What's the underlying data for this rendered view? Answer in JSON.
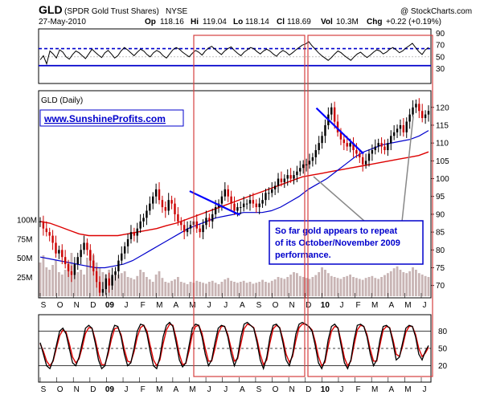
{
  "header": {
    "symbol": "GLD",
    "name": "(SPDR Gold Trust Shares)",
    "exchange": "NYSE",
    "brand": "@ StockCharts.com",
    "date": "27-May-2010",
    "op_label": "Op",
    "op": "118.16",
    "hi_label": "Hi",
    "hi": "119.04",
    "lo_label": "Lo",
    "lo": "118.14",
    "cl_label": "Cl",
    "cl": "118.69",
    "vol_label": "Vol",
    "vol": "10.3M",
    "chg_label": "Chg",
    "chg": "+0.22 (+0.19%)"
  },
  "main_panel": {
    "label": "GLD (Daily)",
    "website": "www.SunshineProfits.com"
  },
  "annotation": {
    "lines": [
      "So far gold appears to repeat",
      "of its October/November 2009",
      "performance."
    ]
  },
  "colors": {
    "price_up": "#000000",
    "price_down": "#cc0000",
    "ma_short": "#0000cc",
    "ma_long": "#dd0000",
    "volume": "#c8b4b4",
    "highlight_box": "#d64040",
    "trendline": "#0000ff",
    "annotation_text": "#0000cc",
    "rsi_band": "#0000cc",
    "osc_line": "#000000",
    "osc_signal": "#dd0000"
  },
  "chart_data": [
    {
      "type": "line",
      "panel": "RSI (top)",
      "y_ticks": [
        "90",
        "70",
        "50",
        "30"
      ],
      "ylim": [
        10,
        95
      ],
      "overbought": 64,
      "oversold": 35,
      "values": [
        45,
        52,
        38,
        60,
        55,
        48,
        62,
        58,
        50,
        46,
        54,
        60,
        57,
        52,
        47,
        55,
        63,
        58,
        53,
        49,
        57,
        61,
        55,
        48,
        52,
        60,
        66,
        62,
        57,
        52,
        58,
        63,
        60,
        54,
        50,
        57,
        61,
        58,
        52,
        48,
        55,
        62,
        66,
        63,
        58,
        54,
        50,
        56,
        61,
        58,
        53,
        60,
        65,
        68,
        63,
        58,
        54,
        60,
        64,
        67,
        61,
        56,
        52,
        58,
        62,
        66,
        64,
        59,
        55,
        60,
        63,
        60,
        55,
        51,
        57,
        61,
        58,
        53,
        57,
        62,
        66,
        70,
        72,
        76,
        69,
        63,
        57,
        52,
        48,
        44,
        49,
        55,
        60,
        57,
        52,
        48,
        44,
        50,
        55,
        58,
        53,
        49,
        53,
        58,
        62,
        60,
        55,
        58,
        63,
        66,
        62,
        57,
        60,
        65,
        69,
        73,
        66,
        59,
        54,
        62,
        66
      ]
    },
    {
      "type": "candlestick",
      "panel": "GLD (Daily)",
      "x_tick_labels": [
        "S",
        "O",
        "N",
        "D",
        "09",
        "J",
        "F",
        "M",
        "A",
        "M",
        "J",
        "J",
        "A",
        "S",
        "O",
        "N",
        "D",
        "10",
        "J",
        "F",
        "M",
        "A",
        "M",
        "J"
      ],
      "y_ticks": [
        "120",
        "115",
        "110",
        "105",
        "100",
        "95",
        "90",
        "85",
        "80",
        "75",
        "70"
      ],
      "ylim": [
        67,
        124
      ],
      "volume_ticks": [
        "100M",
        "75M",
        "50M",
        "25M"
      ],
      "close": [
        88,
        86,
        85,
        84,
        82,
        79,
        80,
        78,
        76,
        74,
        73,
        76,
        78,
        80,
        82,
        80,
        77,
        74,
        71,
        68,
        69,
        72,
        70,
        73,
        74,
        77,
        79,
        81,
        83,
        85,
        84,
        86,
        88,
        89,
        91,
        93,
        95,
        97,
        94,
        92,
        91,
        94,
        93,
        90,
        88,
        87,
        85,
        86,
        87,
        88,
        86,
        85,
        87,
        89,
        88,
        90,
        92,
        93,
        95,
        97,
        95,
        93,
        91,
        92,
        92,
        93,
        93,
        94,
        93,
        92,
        93,
        94,
        96,
        96,
        97,
        98,
        100,
        99,
        100,
        101,
        100,
        101,
        102,
        103,
        104,
        104,
        105,
        106,
        108,
        110,
        112,
        115,
        118,
        120,
        116,
        113,
        111,
        110,
        109,
        110,
        108,
        107,
        106,
        104,
        105,
        107,
        108,
        109,
        110,
        109,
        108,
        110,
        112,
        113,
        114,
        115,
        113,
        116,
        118,
        120,
        121,
        119,
        117,
        118,
        119
      ],
      "volume": [
        70,
        85,
        60,
        55,
        65,
        75,
        50,
        45,
        55,
        70,
        90,
        65,
        50,
        55,
        45,
        80,
        95,
        85,
        70,
        60,
        50,
        45,
        55,
        40,
        50,
        45,
        48,
        52,
        40,
        38,
        35,
        42,
        55,
        50,
        40,
        35,
        30,
        45,
        52,
        38,
        30,
        28,
        32,
        35,
        40,
        30,
        28,
        25,
        30,
        28,
        32,
        30,
        28,
        26,
        30,
        32,
        28,
        25,
        30,
        35,
        38,
        32,
        30,
        28,
        30,
        32,
        28,
        30,
        26,
        28,
        30,
        34,
        30,
        28,
        32,
        35,
        40,
        38,
        36,
        40,
        45,
        50,
        48,
        42,
        40,
        38,
        36,
        40,
        44,
        50,
        60,
        55,
        48,
        42,
        40,
        38,
        36,
        40,
        42,
        45,
        40,
        38,
        36,
        34,
        38,
        40,
        42,
        38,
        36,
        40,
        44,
        48,
        52,
        58,
        62,
        55,
        50,
        48,
        52,
        60,
        55,
        48,
        45,
        42,
        40
      ],
      "ma_short_50": [
        78,
        77.5,
        77,
        76.5,
        76,
        75.5,
        75,
        75,
        75.5,
        76,
        77,
        78.5,
        80,
        81.5,
        83,
        84.5,
        86,
        87,
        88,
        89,
        89.5,
        90,
        90.5,
        90.5,
        90.5,
        91,
        92,
        93.5,
        95,
        97,
        98.5,
        100,
        102,
        104,
        106,
        107.5,
        108.5,
        109.5,
        110,
        110.5,
        111,
        112,
        113.5
      ],
      "ma_long_200": [
        88,
        87.5,
        86.5,
        85.5,
        84.5,
        84,
        84,
        84,
        84,
        84.5,
        85,
        85.5,
        86,
        86.8,
        87.5,
        88.5,
        89.5,
        90.5,
        91.5,
        92.5,
        93.5,
        94.5,
        95.5,
        96.5,
        97.5,
        98.5,
        99.5,
        100.5,
        101,
        101.5,
        102,
        102.5,
        103,
        103.5,
        104,
        104.5,
        105,
        105.5,
        106,
        106.5,
        107.5
      ],
      "trendlines": [
        {
          "x1": 0.385,
          "y1": 96.5,
          "x2": 0.513,
          "y2": 89.8
        },
        {
          "x1": 0.708,
          "y1": 119.8,
          "x2": 0.828,
          "y2": 107.0
        }
      ]
    },
    {
      "type": "line",
      "panel": "Stochastic oscillator (bottom)",
      "y_ticks": [
        "80",
        "50",
        "20"
      ],
      "ylim": [
        0,
        100
      ],
      "k": [
        60,
        40,
        20,
        15,
        30,
        55,
        80,
        85,
        75,
        50,
        25,
        20,
        35,
        60,
        85,
        90,
        85,
        60,
        30,
        15,
        20,
        45,
        75,
        90,
        88,
        70,
        40,
        20,
        25,
        50,
        80,
        92,
        90,
        75,
        45,
        20,
        15,
        35,
        70,
        90,
        95,
        88,
        60,
        30,
        18,
        25,
        55,
        85,
        92,
        90,
        70,
        40,
        20,
        30,
        60,
        85,
        90,
        88,
        70,
        40,
        20,
        35,
        70,
        92,
        95,
        90,
        85,
        60,
        30,
        15,
        35,
        70,
        90,
        92,
        85,
        60,
        30,
        20,
        40,
        75,
        92,
        95,
        92,
        88,
        80,
        55,
        25,
        15,
        30,
        65,
        88,
        92,
        85,
        55,
        25,
        15,
        30,
        65,
        90,
        92,
        88,
        70,
        40,
        20,
        30,
        65,
        88,
        90,
        85,
        60,
        30,
        35,
        60,
        85,
        90,
        88,
        70,
        40,
        30,
        45,
        55
      ],
      "d": [
        58,
        45,
        28,
        20,
        28,
        50,
        72,
        82,
        78,
        58,
        35,
        25,
        32,
        52,
        76,
        86,
        85,
        66,
        40,
        22,
        22,
        40,
        66,
        84,
        86,
        74,
        48,
        28,
        26,
        44,
        70,
        86,
        90,
        80,
        55,
        30,
        20,
        30,
        58,
        82,
        92,
        90,
        68,
        40,
        22,
        24,
        46,
        74,
        88,
        90,
        76,
        50,
        28,
        28,
        50,
        76,
        88,
        88,
        74,
        50,
        28,
        32,
        58,
        84,
        92,
        90,
        86,
        66,
        40,
        22,
        30,
        60,
        84,
        90,
        86,
        66,
        40,
        26,
        36,
        64,
        86,
        92,
        92,
        88,
        82,
        62,
        36,
        20,
        26,
        54,
        80,
        88,
        86,
        62,
        34,
        20,
        28,
        56,
        82,
        90,
        88,
        74,
        48,
        28,
        28,
        56,
        82,
        88,
        86,
        66,
        40,
        36,
        54,
        78,
        88,
        88,
        74,
        50,
        36,
        42,
        52
      ]
    }
  ],
  "x_tick_labels_bottom": [
    "S",
    "O",
    "N",
    "D",
    "09",
    "J",
    "F",
    "M",
    "A",
    "M",
    "J",
    "J",
    "A",
    "S",
    "O",
    "N",
    "D",
    "10",
    "J",
    "F",
    "M",
    "A",
    "M",
    "J"
  ]
}
